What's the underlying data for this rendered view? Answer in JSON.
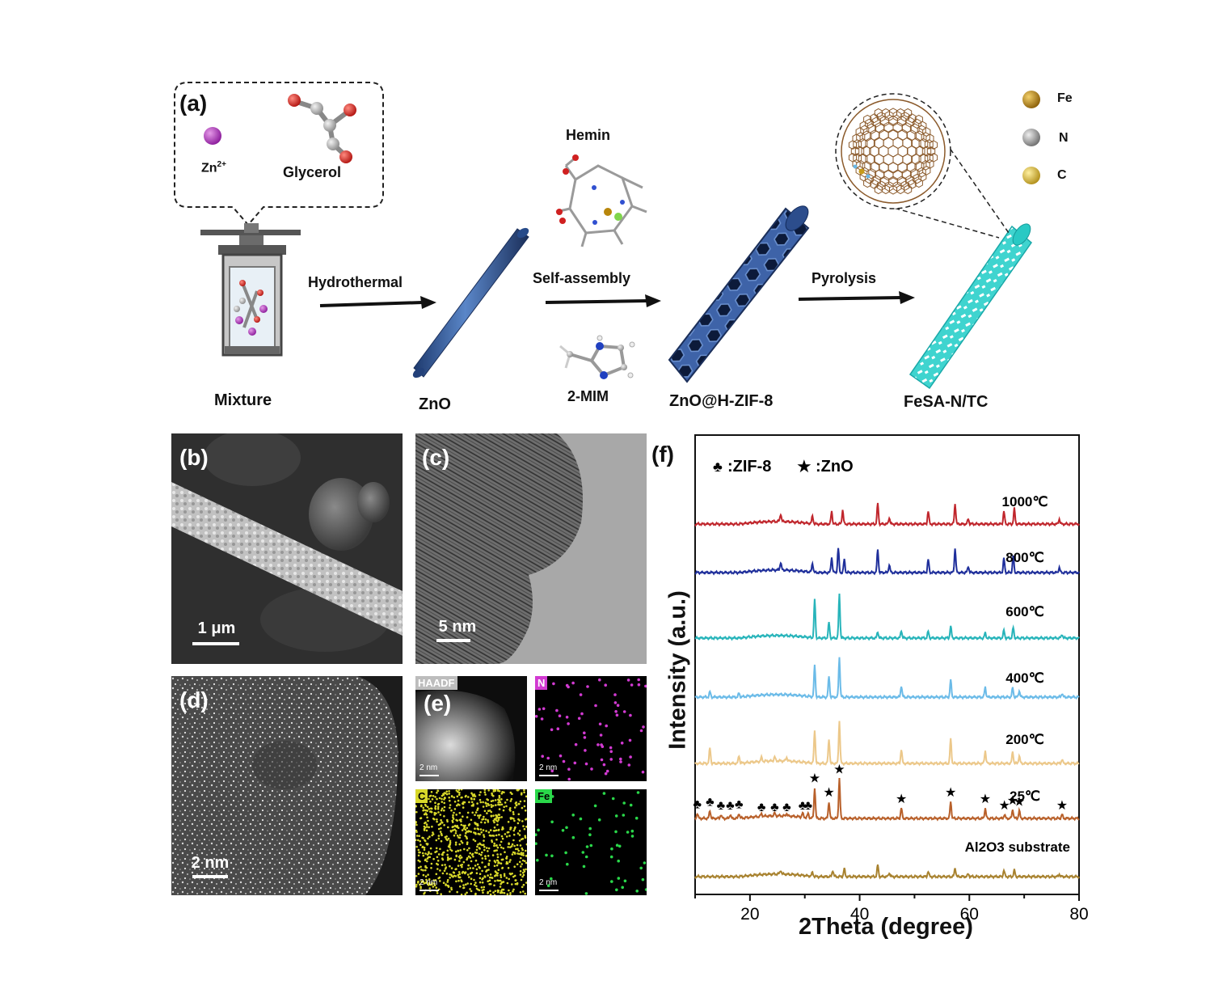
{
  "schematic": {
    "panel_label": "(a)",
    "ion_label": "Zn",
    "ion_charge": "2+",
    "glycerol_label": "Glycerol",
    "step1_label": "Hydrothermal",
    "step2_label": "Self-assembly",
    "step3_label": "Pyrolysis",
    "hemin_label": "Hemin",
    "mim_label": "2-MIM",
    "mixture_label": "Mixture",
    "zno_label": "ZnO",
    "zif_label": "ZnO@H-ZIF-8",
    "fesa_label": "FeSA-N/TC",
    "legend": [
      {
        "symbol": "Fe",
        "color": "#b8860b"
      },
      {
        "symbol": "N",
        "color": "#8f8f8f"
      },
      {
        "symbol": "C",
        "color": "#d9b83a"
      }
    ]
  },
  "micrographs": {
    "b": {
      "label": "(b)",
      "scale": "1 μm"
    },
    "c": {
      "label": "(c)",
      "scale": "5 nm"
    },
    "d": {
      "label": "(d)",
      "scale": "2 nm"
    },
    "e": {
      "label": "(e)",
      "maps": [
        {
          "name": "HAADF",
          "scale": "2 nm",
          "label_bg": "#bdbdbd",
          "label_color": "#ffffff"
        },
        {
          "name": "N",
          "scale": "2 nm",
          "label_bg": "#d23ad2",
          "label_color": "#ffffff"
        },
        {
          "name": "C",
          "scale": "2 nm",
          "label_bg": "#d8d82a",
          "label_color": "#000000"
        },
        {
          "name": "Fe",
          "scale": "2 nm",
          "label_bg": "#2ad84a",
          "label_color": "#000000"
        }
      ]
    }
  },
  "chart_data": {
    "type": "line",
    "panel_label": "(f)",
    "xlabel": "2Theta (degree)",
    "ylabel": "Intensity (a.u.)",
    "xlim": [
      10,
      80
    ],
    "xticks": [
      "20",
      "40",
      "60",
      "80"
    ],
    "legend_text": {
      "zif": ":ZIF-8",
      "zno": ":ZnO"
    },
    "series": [
      {
        "name": "1000℃",
        "color": "#c0262c",
        "peaks": [
          [
            25.6,
            0.6
          ],
          [
            31.4,
            0.6
          ],
          [
            34.9,
            1.0
          ],
          [
            36.9,
            1.1
          ],
          [
            43.3,
            1.6
          ],
          [
            45.4,
            0.5
          ],
          [
            52.5,
            1.0
          ],
          [
            57.4,
            1.6
          ],
          [
            59.8,
            0.4
          ],
          [
            66.3,
            1.0
          ],
          [
            68.2,
            1.2
          ],
          [
            76.4,
            0.4
          ]
        ]
      },
      {
        "name": "800℃",
        "color": "#1f2f9b",
        "peaks": [
          [
            25.6,
            0.6
          ],
          [
            31.4,
            0.7
          ],
          [
            34.9,
            1.2
          ],
          [
            36.1,
            1.9
          ],
          [
            37.2,
            1.0
          ],
          [
            43.3,
            1.8
          ],
          [
            45.4,
            0.6
          ],
          [
            52.5,
            1.0
          ],
          [
            57.4,
            1.9
          ],
          [
            59.8,
            0.5
          ],
          [
            66.3,
            1.1
          ],
          [
            68.0,
            1.3
          ],
          [
            76.4,
            0.4
          ]
        ]
      },
      {
        "name": "600℃",
        "color": "#27b4ba",
        "peaks": [
          [
            31.8,
            3.0
          ],
          [
            34.4,
            1.2
          ],
          [
            36.3,
            3.4
          ],
          [
            43.3,
            0.5
          ],
          [
            47.6,
            0.6
          ],
          [
            52.5,
            0.5
          ],
          [
            56.6,
            0.9
          ],
          [
            62.9,
            0.4
          ],
          [
            66.3,
            0.6
          ],
          [
            68.0,
            0.8
          ],
          [
            76.9,
            0.3
          ]
        ]
      },
      {
        "name": "400℃",
        "color": "#6bbbe8",
        "peaks": [
          [
            12.7,
            0.4
          ],
          [
            18.0,
            0.3
          ],
          [
            31.8,
            2.5
          ],
          [
            34.4,
            1.6
          ],
          [
            36.3,
            3.1
          ],
          [
            47.6,
            0.9
          ],
          [
            56.6,
            1.3
          ],
          [
            62.9,
            0.8
          ],
          [
            67.9,
            0.7
          ],
          [
            69.1,
            0.5
          ],
          [
            76.9,
            0.3
          ]
        ]
      },
      {
        "name": "200℃",
        "color": "#ecc88a",
        "peaks": [
          [
            12.7,
            1.2
          ],
          [
            18.0,
            0.6
          ],
          [
            22.1,
            0.3
          ],
          [
            24.5,
            0.3
          ],
          [
            26.7,
            0.3
          ],
          [
            31.8,
            2.6
          ],
          [
            34.4,
            1.9
          ],
          [
            36.3,
            3.3
          ],
          [
            47.6,
            1.1
          ],
          [
            56.6,
            1.9
          ],
          [
            62.9,
            1.0
          ],
          [
            67.9,
            0.9
          ],
          [
            69.1,
            0.6
          ],
          [
            76.9,
            0.3
          ]
        ]
      },
      {
        "name": "25℃",
        "color": "#b8602a",
        "peaks": [
          [
            10.4,
            0.4
          ],
          [
            12.7,
            0.6
          ],
          [
            14.7,
            0.3
          ],
          [
            16.4,
            0.3
          ],
          [
            18.0,
            0.4
          ],
          [
            22.1,
            0.2
          ],
          [
            24.5,
            0.2
          ],
          [
            26.7,
            0.2
          ],
          [
            29.6,
            0.3
          ],
          [
            30.6,
            0.3
          ],
          [
            31.8,
            2.4
          ],
          [
            34.4,
            1.3
          ],
          [
            36.3,
            3.1
          ],
          [
            47.6,
            0.8
          ],
          [
            56.6,
            1.3
          ],
          [
            62.9,
            0.8
          ],
          [
            66.4,
            0.3
          ],
          [
            67.9,
            0.7
          ],
          [
            69.1,
            0.6
          ],
          [
            76.9,
            0.3
          ]
        ]
      },
      {
        "name": "Al2O3 substrate",
        "color": "#a8822f",
        "peaks": [
          [
            25.6,
            0.3
          ],
          [
            31.4,
            0.3
          ],
          [
            35.1,
            0.5
          ],
          [
            37.2,
            0.6
          ],
          [
            43.3,
            0.9
          ],
          [
            45.4,
            0.3
          ],
          [
            52.5,
            0.4
          ],
          [
            57.4,
            0.7
          ],
          [
            59.8,
            0.2
          ],
          [
            66.3,
            0.5
          ],
          [
            68.2,
            0.5
          ],
          [
            76.4,
            0.2
          ]
        ]
      }
    ],
    "zif_marks": [
      10.4,
      12.7,
      14.7,
      16.4,
      18.0,
      22.1,
      24.5,
      26.7,
      29.6,
      30.6
    ],
    "zno_marks": [
      31.8,
      34.4,
      36.3,
      47.6,
      56.6,
      62.9,
      66.4,
      67.9,
      69.1,
      76.9
    ]
  }
}
